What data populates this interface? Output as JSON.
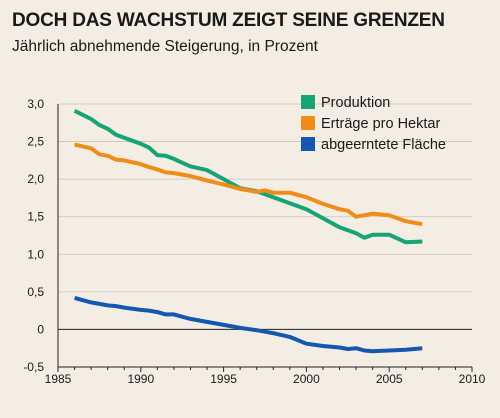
{
  "title": "DOCH DAS WACHSTUM ZEIGT SEINE GRENZEN",
  "subtitle": "Jährlich abnehmende Steigerung, in Prozent",
  "chart_data": {
    "type": "line",
    "xlim": [
      1985,
      2010
    ],
    "ylim": [
      -0.5,
      3.0
    ],
    "x_ticks": [
      1985,
      1990,
      1995,
      2000,
      2005,
      2010
    ],
    "y_ticks": [
      "-0,5",
      "0",
      "0,5",
      "1,0",
      "1,5",
      "2,0",
      "2,5",
      "3,0"
    ],
    "y_tick_values": [
      -0.5,
      0,
      0.5,
      1.0,
      1.5,
      2.0,
      2.5,
      3.0
    ],
    "grid": "horizontal",
    "legend_position": "top-right",
    "x": [
      1986,
      1987,
      1987.5,
      1988,
      1988.5,
      1989,
      1990,
      1990.5,
      1991,
      1991.5,
      1992,
      1993,
      1994,
      1995,
      1996,
      1997,
      1997.5,
      1998,
      1999,
      2000,
      2001,
      2002,
      2002.5,
      2003,
      2003.5,
      2004,
      2005,
      2006,
      2007
    ],
    "series": [
      {
        "name": "Produktion",
        "color": "#17a374",
        "values": [
          2.91,
          2.8,
          2.72,
          2.67,
          2.59,
          2.55,
          2.47,
          2.42,
          2.32,
          2.31,
          2.27,
          2.17,
          2.12,
          2.0,
          1.88,
          1.84,
          1.8,
          1.76,
          1.68,
          1.6,
          1.48,
          1.36,
          1.32,
          1.28,
          1.22,
          1.26,
          1.26,
          1.16,
          1.17
        ]
      },
      {
        "name": "Erträge pro Hektar",
        "color": "#f08c19",
        "values": [
          2.46,
          2.41,
          2.33,
          2.31,
          2.26,
          2.25,
          2.2,
          2.16,
          2.13,
          2.09,
          2.08,
          2.04,
          1.98,
          1.93,
          1.87,
          1.83,
          1.85,
          1.82,
          1.82,
          1.76,
          1.67,
          1.6,
          1.58,
          1.5,
          1.52,
          1.54,
          1.52,
          1.44,
          1.4
        ]
      },
      {
        "name": "abgeerntete Fläche",
        "color": "#1557b0",
        "values": [
          0.42,
          0.36,
          0.34,
          0.32,
          0.31,
          0.29,
          0.26,
          0.25,
          0.23,
          0.2,
          0.2,
          0.14,
          0.1,
          0.06,
          0.02,
          -0.01,
          -0.03,
          -0.05,
          -0.1,
          -0.19,
          -0.22,
          -0.24,
          -0.26,
          -0.25,
          -0.28,
          -0.29,
          -0.28,
          -0.27,
          -0.25
        ]
      }
    ]
  }
}
